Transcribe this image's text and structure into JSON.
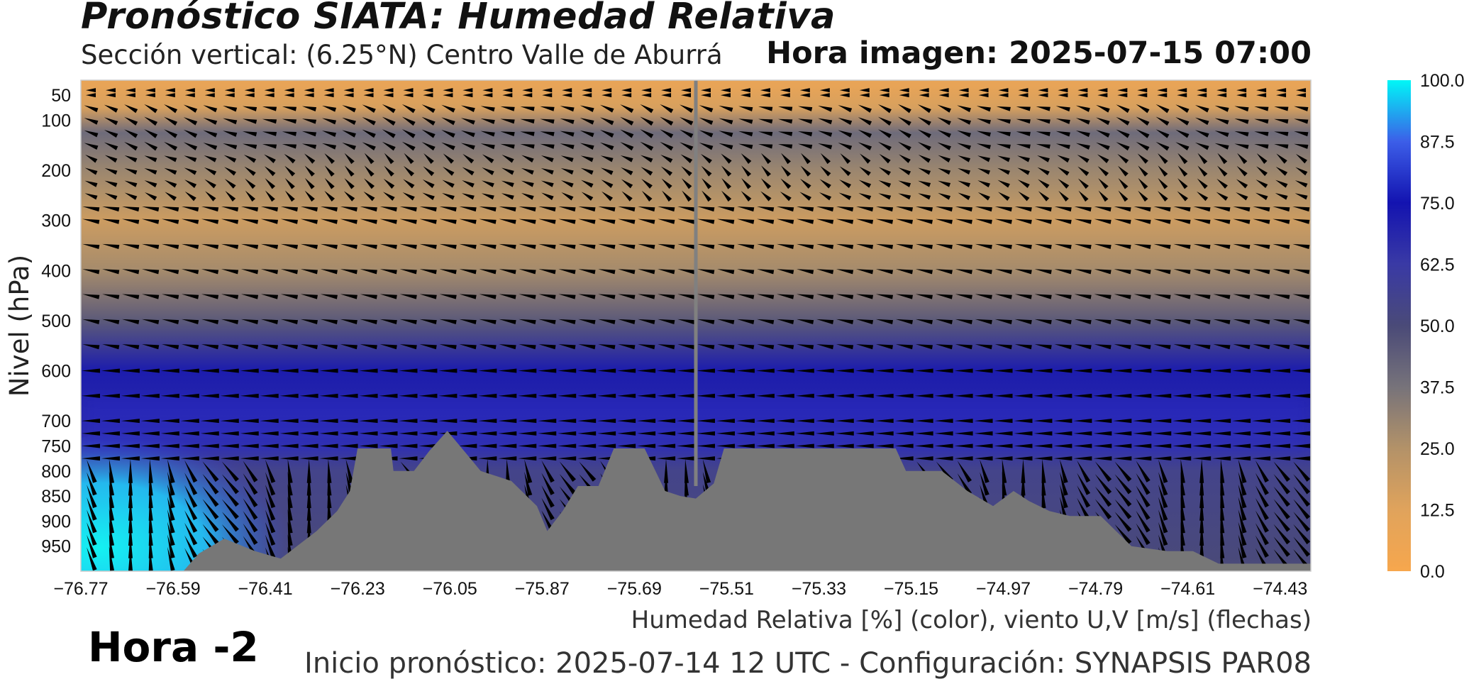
{
  "header": {
    "title": "Pronóstico SIATA: Humedad Relativa",
    "subtitle": "Sección vertical: (6.25°N) Centro Valle de Aburrá",
    "image_time": "Hora imagen: 2025-07-15 07:00"
  },
  "footer": {
    "hour_offset": "Hora -2",
    "init_info": "Inicio pronóstico: 2025-07-14 12 UTC - Configuración: SYNAPSIS PAR08"
  },
  "chart_data": {
    "type": "heatmap",
    "title": "",
    "xlabel": "Humedad Relativa [%] (color), viento U,V [m/s] (flechas)",
    "ylabel": "Nivel (hPa)",
    "x_range": [
      -76.77,
      -74.37
    ],
    "y_range": [
      1000,
      20
    ],
    "x_ticks": [
      "−76.77",
      "−76.59",
      "−76.41",
      "−76.23",
      "−76.05",
      "−75.87",
      "−75.69",
      "−75.51",
      "−75.33",
      "−75.15",
      "−74.97",
      "−74.79",
      "−74.61",
      "−74.43"
    ],
    "x_tick_values": [
      -76.77,
      -76.59,
      -76.41,
      -76.23,
      -76.05,
      -75.87,
      -75.69,
      -75.51,
      -75.33,
      -75.15,
      -74.97,
      -74.79,
      -74.61,
      -74.43
    ],
    "y_ticks": [
      "50",
      "100",
      "200",
      "300",
      "400",
      "500",
      "600",
      "700",
      "750",
      "800",
      "850",
      "900",
      "950"
    ],
    "y_tick_values": [
      50,
      100,
      200,
      300,
      400,
      500,
      600,
      700,
      750,
      800,
      850,
      900,
      950
    ],
    "colorbar": {
      "ticks": [
        "0.0",
        "12.5",
        "25.0",
        "37.5",
        "50.0",
        "62.5",
        "75.0",
        "87.5",
        "100.0"
      ],
      "tick_values": [
        0,
        12.5,
        25,
        37.5,
        50,
        62.5,
        75,
        87.5,
        100
      ],
      "range": [
        0,
        100
      ]
    },
    "series": [
      {
        "rh_profile": [
          {
            "p": 30,
            "rh": 8
          },
          {
            "p": 75,
            "rh": 15
          },
          {
            "p": 125,
            "rh": 40
          },
          {
            "p": 200,
            "rh": 30
          },
          {
            "p": 250,
            "rh": 25
          },
          {
            "p": 300,
            "rh": 18
          },
          {
            "p": 400,
            "rh": 28
          },
          {
            "p": 500,
            "rh": 45
          },
          {
            "p": 600,
            "rh": 72
          },
          {
            "p": 700,
            "rh": 68
          },
          {
            "p": 750,
            "rh": 65
          },
          {
            "p": 800,
            "rh": 55
          },
          {
            "p": 1000,
            "rh": 50
          }
        ],
        "west_moist_core_rh": 98,
        "terrain_profile": [
          {
            "lon": -76.77,
            "p": 1000
          },
          {
            "lon": -76.57,
            "p": 1000
          },
          {
            "lon": -76.54,
            "p": 965
          },
          {
            "lon": -76.49,
            "p": 935
          },
          {
            "lon": -76.43,
            "p": 960
          },
          {
            "lon": -76.38,
            "p": 975
          },
          {
            "lon": -76.31,
            "p": 920
          },
          {
            "lon": -76.27,
            "p": 880
          },
          {
            "lon": -76.245,
            "p": 840
          },
          {
            "lon": -76.23,
            "p": 755
          },
          {
            "lon": -76.165,
            "p": 755
          },
          {
            "lon": -76.16,
            "p": 800
          },
          {
            "lon": -76.12,
            "p": 800
          },
          {
            "lon": -76.09,
            "p": 760
          },
          {
            "lon": -76.055,
            "p": 720
          },
          {
            "lon": -76.01,
            "p": 775
          },
          {
            "lon": -75.99,
            "p": 800
          },
          {
            "lon": -75.93,
            "p": 820
          },
          {
            "lon": -75.88,
            "p": 870
          },
          {
            "lon": -75.86,
            "p": 920
          },
          {
            "lon": -75.83,
            "p": 880
          },
          {
            "lon": -75.8,
            "p": 830
          },
          {
            "lon": -75.76,
            "p": 830
          },
          {
            "lon": -75.73,
            "p": 755
          },
          {
            "lon": -75.67,
            "p": 755
          },
          {
            "lon": -75.63,
            "p": 840
          },
          {
            "lon": -75.6,
            "p": 850
          },
          {
            "lon": -75.57,
            "p": 855
          },
          {
            "lon": -75.535,
            "p": 825
          },
          {
            "lon": -75.515,
            "p": 755
          },
          {
            "lon": -75.18,
            "p": 755
          },
          {
            "lon": -75.16,
            "p": 800
          },
          {
            "lon": -75.09,
            "p": 800
          },
          {
            "lon": -75.04,
            "p": 840
          },
          {
            "lon": -74.99,
            "p": 870
          },
          {
            "lon": -74.95,
            "p": 840
          },
          {
            "lon": -74.92,
            "p": 860
          },
          {
            "lon": -74.88,
            "p": 880
          },
          {
            "lon": -74.84,
            "p": 890
          },
          {
            "lon": -74.78,
            "p": 890
          },
          {
            "lon": -74.72,
            "p": 950
          },
          {
            "lon": -74.65,
            "p": 960
          },
          {
            "lon": -74.6,
            "p": 960
          },
          {
            "lon": -74.55,
            "p": 985
          },
          {
            "lon": -74.37,
            "p": 985
          }
        ],
        "marker_line_lon": -75.57
      }
    ],
    "grid": false
  }
}
